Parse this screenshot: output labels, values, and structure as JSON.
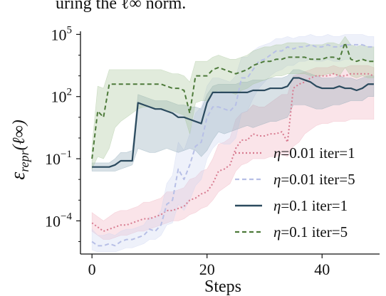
{
  "context_text": "uring the ℓ∞ norm.",
  "chart_data": {
    "type": "line",
    "xlabel": "Steps",
    "ylabel": "εrepr(ℓ∞)",
    "ylabel_main": "ε",
    "ylabel_sub": "repr",
    "ylabel_paren": "(ℓ∞)",
    "xlim": [
      -2,
      50
    ],
    "ylim_log10": [
      -5.6,
      5.15
    ],
    "y_scale": "log",
    "x_ticks": [
      0,
      20,
      40
    ],
    "x_tick_labels": [
      "0",
      "20",
      "40"
    ],
    "y_ticks_log10": [
      5,
      2,
      -1,
      -4
    ],
    "y_tick_labels": [
      {
        "base": "10",
        "exp": "5"
      },
      {
        "base": "10",
        "exp": "2"
      },
      {
        "base": "10",
        "exp": "−1"
      },
      {
        "base": "10",
        "exp": "−4"
      }
    ],
    "legend_position": "lower-right",
    "series": [
      {
        "name": "η=0.01 iter=1",
        "legend_parts": [
          "η",
          "=0.01 iter=1"
        ],
        "color": "#d77a8f",
        "band_color": "#f0b3bf",
        "dash": "dotted",
        "x": [
          0,
          1,
          2,
          3,
          4,
          5,
          6,
          7,
          8,
          9,
          10,
          11,
          12,
          13,
          14,
          15,
          16,
          17,
          18,
          19,
          20,
          21,
          22,
          23,
          24,
          25,
          26,
          27,
          28,
          29,
          30,
          31,
          32,
          33,
          34,
          35,
          36,
          37,
          38,
          39,
          40,
          41,
          42,
          43,
          44,
          45,
          46,
          47,
          48,
          49
        ],
        "y_log10": [
          -4.1,
          -4.3,
          -4.5,
          -4.4,
          -4.3,
          -4.2,
          -4.2,
          -4.1,
          -4.0,
          -3.9,
          -3.9,
          -3.8,
          -3.7,
          -3.5,
          -3.5,
          -3.4,
          -3.3,
          -3.0,
          -2.9,
          -2.7,
          -2.6,
          -2.2,
          -1.6,
          -1.5,
          -1.3,
          -0.5,
          -0.1,
          -0.1,
          0.2,
          0.1,
          0.1,
          0.2,
          0.2,
          0.3,
          -0.2,
          2.4,
          2.6,
          2.7,
          2.9,
          3.0,
          3.0,
          3.0,
          3.1,
          3.0,
          3.0,
          3.1,
          3.1,
          3.1,
          3.1,
          3.0
        ],
        "lower_log10": [
          -4.5,
          -4.7,
          -4.9,
          -4.9,
          -4.8,
          -4.7,
          -4.7,
          -4.6,
          -4.5,
          -4.5,
          -4.4,
          -4.3,
          -4.2,
          -4.1,
          -4.0,
          -4.0,
          -3.9,
          -3.7,
          -3.6,
          -3.4,
          -3.3,
          -3.0,
          -2.6,
          -2.4,
          -2.2,
          -1.6,
          -1.3,
          -1.2,
          -1.0,
          -1.0,
          -1.0,
          -0.9,
          -0.9,
          -0.8,
          -0.9,
          -0.4,
          -0.2,
          0.2,
          0.4,
          0.6,
          0.7,
          0.7,
          0.8,
          0.8,
          0.8,
          0.9,
          0.9,
          0.9,
          0.9,
          0.9
        ],
        "upper_log10": [
          -3.6,
          -3.8,
          -4.0,
          -3.8,
          -3.6,
          -3.5,
          -3.5,
          -3.4,
          -3.3,
          -3.1,
          -3.1,
          -3.0,
          -2.9,
          -2.6,
          -2.6,
          -2.5,
          -2.4,
          -2.0,
          -1.9,
          -1.6,
          -1.5,
          -1.0,
          -0.3,
          -0.2,
          0.0,
          0.9,
          1.2,
          1.3,
          1.6,
          1.5,
          1.5,
          1.7,
          1.9,
          2.1,
          2.1,
          3.0,
          3.1,
          3.2,
          3.3,
          3.4,
          3.4,
          3.4,
          3.5,
          3.4,
          3.4,
          3.5,
          3.5,
          3.5,
          3.5,
          3.4
        ]
      },
      {
        "name": "η=0.01 iter=5",
        "legend_parts": [
          "η",
          "=0.01 iter=5"
        ],
        "color": "#b7bfe6",
        "band_color": "#cdd6f2",
        "dash": "dashed",
        "x": [
          0,
          1,
          2,
          3,
          4,
          5,
          6,
          7,
          8,
          9,
          10,
          11,
          12,
          13,
          14,
          15,
          16,
          17,
          18,
          19,
          20,
          21,
          22,
          23,
          24,
          25,
          26,
          27,
          28,
          29,
          30,
          31,
          32,
          33,
          34,
          35,
          36,
          37,
          38,
          39,
          40,
          41,
          42,
          43,
          44,
          45,
          46,
          47,
          48,
          49
        ],
        "y_log10": [
          -5.0,
          -5.2,
          -5.2,
          -5.1,
          -5.2,
          -5.0,
          -4.9,
          -4.9,
          -4.8,
          -4.7,
          -4.4,
          -4.5,
          -4.2,
          -3.2,
          -3.0,
          -1.5,
          -2.0,
          -1.3,
          -0.4,
          -0.2,
          1.0,
          1.5,
          1.5,
          1.4,
          1.3,
          1.6,
          2.9,
          2.9,
          3.3,
          3.7,
          3.8,
          4.0,
          4.2,
          4.2,
          4.4,
          4.3,
          4.4,
          4.4,
          4.5,
          4.4,
          4.4,
          4.5,
          4.4,
          4.4,
          4.5,
          4.5,
          4.5,
          4.5,
          4.4,
          4.4
        ],
        "lower_log10": [
          -5.4,
          -5.5,
          -5.5,
          -5.5,
          -5.5,
          -5.4,
          -5.3,
          -5.3,
          -5.2,
          -5.1,
          -4.9,
          -4.9,
          -4.7,
          -4.2,
          -4.1,
          -3.2,
          -3.5,
          -3.0,
          -2.3,
          -2.0,
          -1.0,
          -0.5,
          -0.2,
          -0.3,
          -0.3,
          0.0,
          1.2,
          1.3,
          1.9,
          2.4,
          2.7,
          3.0,
          3.2,
          3.3,
          3.5,
          3.5,
          3.7,
          3.7,
          3.8,
          3.7,
          3.7,
          3.8,
          3.7,
          3.7,
          3.8,
          3.8,
          3.8,
          3.8,
          3.7,
          3.7
        ],
        "upper_log10": [
          -4.4,
          -4.7,
          -4.7,
          -4.6,
          -4.7,
          -4.5,
          -4.4,
          -4.4,
          -4.3,
          -4.2,
          -3.8,
          -3.9,
          -3.5,
          -2.2,
          -1.8,
          -0.2,
          -0.6,
          0.2,
          1.2,
          1.5,
          2.5,
          2.9,
          2.9,
          2.8,
          2.7,
          3.0,
          3.9,
          3.9,
          4.2,
          4.4,
          4.5,
          4.6,
          4.8,
          4.8,
          4.9,
          4.8,
          4.9,
          4.9,
          5.0,
          4.9,
          4.9,
          5.0,
          4.9,
          4.9,
          5.0,
          5.0,
          5.0,
          5.0,
          4.9,
          4.9
        ]
      },
      {
        "name": "η=0.1 iter=1",
        "legend_parts": [
          "η",
          "=0.1 iter=1"
        ],
        "color": "#2b4a5e",
        "band_color": "#8eaab8",
        "dash": "solid",
        "x": [
          0,
          1,
          2,
          3,
          4,
          5,
          6,
          7,
          8,
          9,
          10,
          11,
          12,
          13,
          14,
          15,
          16,
          17,
          18,
          19,
          20,
          21,
          22,
          23,
          24,
          25,
          26,
          27,
          28,
          29,
          30,
          31,
          32,
          33,
          34,
          35,
          36,
          37,
          38,
          39,
          40,
          41,
          42,
          43,
          44,
          45,
          46,
          47,
          48,
          49
        ],
        "y_log10": [
          -1.4,
          -1.4,
          -1.4,
          -1.4,
          -1.3,
          -1.1,
          -1.1,
          -1.1,
          1.7,
          1.6,
          1.5,
          1.4,
          1.4,
          1.3,
          1.2,
          1.0,
          1.0,
          0.9,
          0.8,
          0.7,
          1.7,
          2.2,
          2.2,
          2.2,
          2.2,
          2.2,
          2.2,
          2.2,
          2.3,
          2.3,
          2.3,
          2.4,
          2.4,
          2.4,
          2.5,
          2.9,
          2.9,
          2.8,
          2.7,
          2.5,
          2.4,
          2.4,
          2.4,
          2.5,
          2.4,
          2.4,
          2.3,
          2.4,
          2.6,
          2.6
        ],
        "lower_log10": [
          -1.6,
          -1.6,
          -1.6,
          -1.6,
          -1.6,
          -1.5,
          -1.4,
          -1.3,
          -0.5,
          -0.6,
          -0.7,
          -0.7,
          -0.6,
          -0.5,
          -0.6,
          -0.7,
          -0.6,
          -0.5,
          -0.6,
          -0.9,
          -0.6,
          -0.1,
          0.3,
          0.2,
          0.3,
          0.4,
          0.5,
          0.6,
          0.5,
          0.6,
          0.7,
          0.8,
          0.8,
          0.9,
          1.0,
          1.6,
          1.6,
          1.6,
          1.5,
          1.4,
          1.4,
          1.5,
          1.6,
          1.6,
          1.7,
          1.8,
          1.8,
          1.8,
          2.0,
          2.0
        ],
        "upper_log10": [
          -1.2,
          -1.2,
          -1.2,
          -1.2,
          -1.0,
          -0.7,
          -0.7,
          -0.6,
          2.1,
          2.0,
          1.9,
          1.8,
          1.8,
          1.8,
          1.7,
          1.6,
          1.6,
          1.5,
          1.5,
          1.4,
          2.1,
          2.5,
          2.6,
          2.6,
          2.6,
          2.6,
          2.7,
          2.7,
          2.8,
          2.8,
          2.8,
          2.9,
          2.9,
          2.9,
          3.0,
          3.3,
          3.3,
          3.2,
          3.1,
          3.0,
          2.9,
          2.9,
          2.9,
          3.0,
          2.9,
          2.9,
          2.8,
          2.9,
          3.0,
          3.0
        ]
      },
      {
        "name": "η=0.1 iter=5",
        "legend_parts": [
          "η",
          "=0.1 iter=5"
        ],
        "color": "#4d7a3a",
        "band_color": "#a9c79c",
        "dash": "dashed",
        "x": [
          0,
          1,
          2,
          3,
          4,
          5,
          6,
          7,
          8,
          9,
          10,
          11,
          12,
          13,
          14,
          15,
          16,
          17,
          18,
          19,
          20,
          21,
          22,
          23,
          24,
          25,
          26,
          27,
          28,
          29,
          30,
          31,
          32,
          33,
          34,
          35,
          36,
          37,
          38,
          39,
          40,
          41,
          42,
          43,
          44,
          45,
          46,
          47,
          48,
          49
        ],
        "y_log10": [
          -1.0,
          1.3,
          1.0,
          2.6,
          2.6,
          2.6,
          2.6,
          2.6,
          2.6,
          2.6,
          2.6,
          2.6,
          2.6,
          2.5,
          2.4,
          2.4,
          2.3,
          1.2,
          3.0,
          3.0,
          3.0,
          3.3,
          3.4,
          3.3,
          3.2,
          3.1,
          3.2,
          3.3,
          3.5,
          3.6,
          3.7,
          3.7,
          3.8,
          3.8,
          3.9,
          3.9,
          3.9,
          3.9,
          3.8,
          3.8,
          3.8,
          3.9,
          3.9,
          3.8,
          4.6,
          3.8,
          3.7,
          3.8,
          3.7,
          3.7
        ],
        "lower_log10": [
          -1.5,
          -0.9,
          -1.0,
          -0.5,
          0.5,
          0.8,
          1.0,
          1.2,
          1.4,
          1.5,
          1.5,
          1.4,
          1.4,
          1.3,
          1.3,
          1.2,
          1.1,
          0.2,
          1.7,
          1.8,
          1.8,
          2.2,
          2.3,
          2.2,
          2.2,
          2.1,
          2.3,
          2.4,
          2.6,
          2.7,
          2.8,
          2.9,
          3.0,
          3.0,
          3.1,
          3.1,
          3.1,
          3.1,
          3.0,
          3.0,
          3.0,
          3.1,
          3.1,
          3.0,
          3.4,
          3.0,
          2.9,
          3.0,
          2.9,
          2.9
        ],
        "upper_log10": [
          -0.4,
          2.5,
          2.4,
          3.3,
          3.3,
          3.3,
          3.3,
          3.3,
          3.3,
          3.3,
          3.3,
          3.3,
          3.3,
          3.2,
          3.1,
          3.1,
          3.0,
          2.7,
          3.7,
          3.7,
          3.7,
          3.9,
          4.0,
          3.9,
          3.8,
          3.8,
          3.9,
          4.0,
          4.2,
          4.3,
          4.4,
          4.4,
          4.5,
          4.5,
          4.6,
          4.6,
          4.6,
          4.6,
          4.5,
          4.5,
          4.5,
          4.6,
          4.6,
          4.5,
          4.9,
          4.5,
          4.4,
          4.5,
          4.4,
          4.4
        ]
      }
    ]
  }
}
